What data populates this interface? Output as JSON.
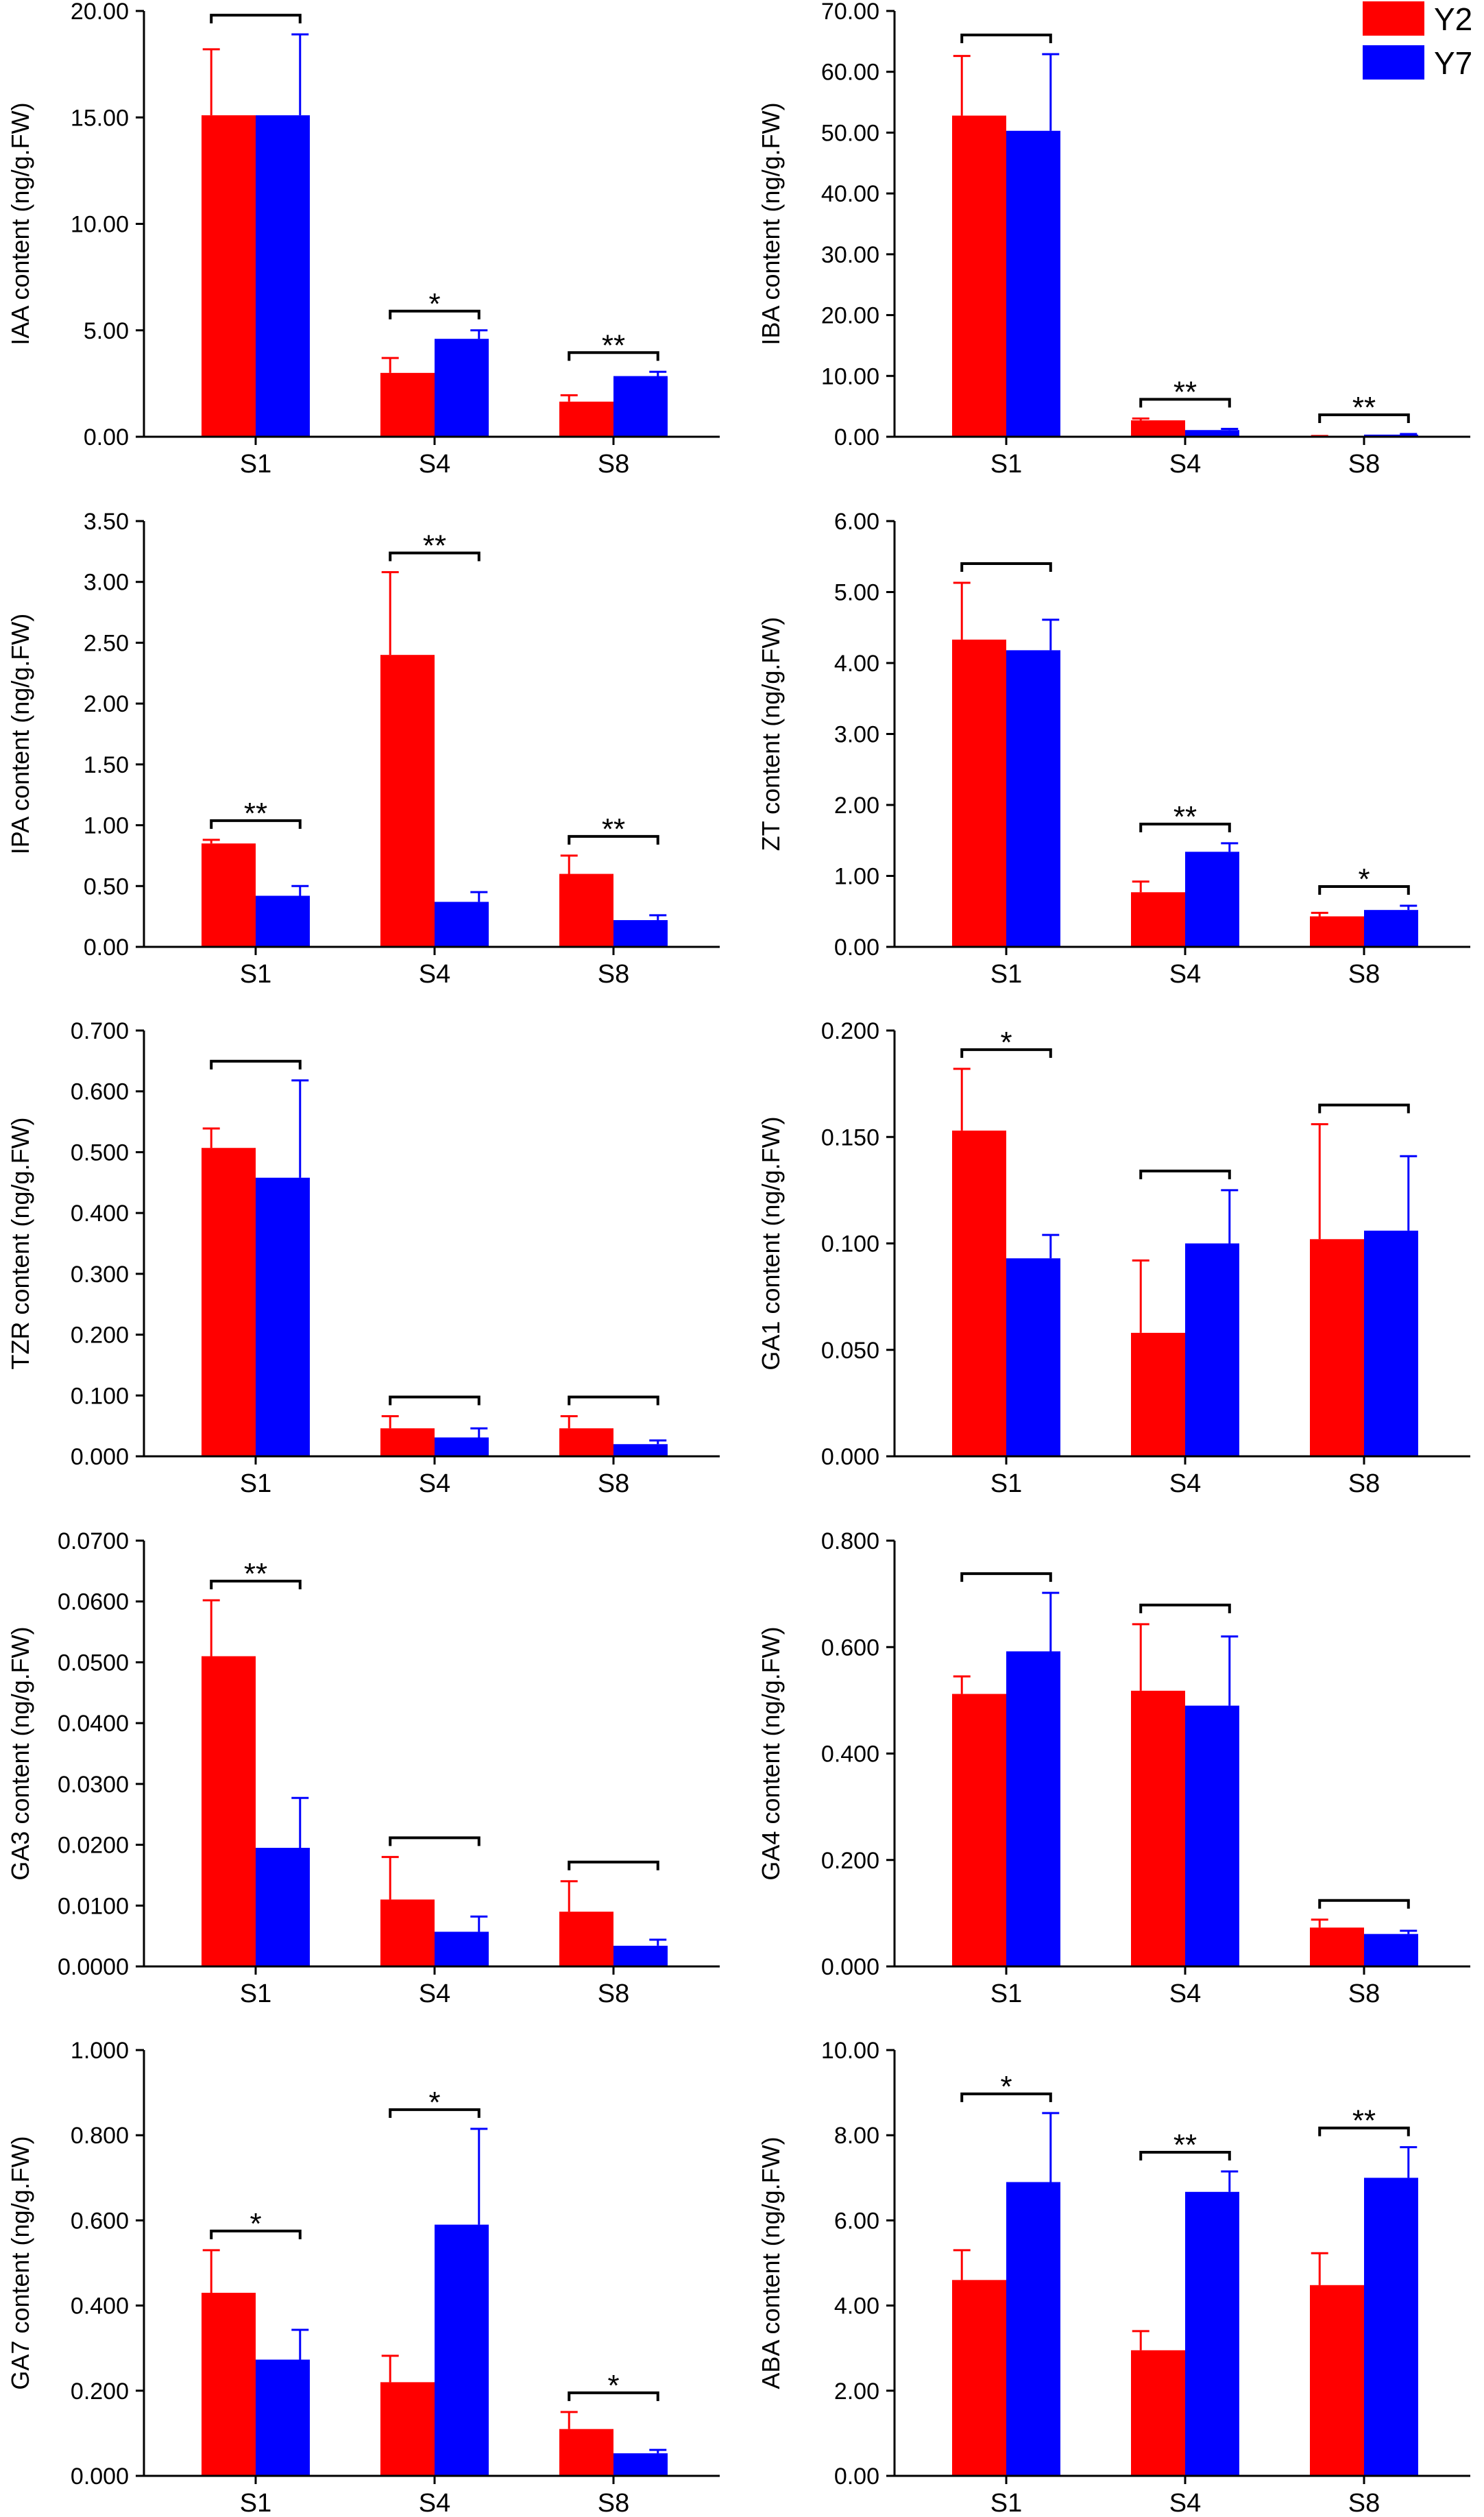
{
  "colors": {
    "Y2": "#ff0000",
    "Y7": "#0000ff"
  },
  "legend": [
    {
      "name": "Y2",
      "color": "#ff0000"
    },
    {
      "name": "Y7",
      "color": "#0000ff"
    }
  ],
  "chart_data": [
    {
      "type": "bar",
      "ylabel": "IAA content (ng/g.FW)",
      "categories": [
        "S1",
        "S4",
        "S8"
      ],
      "ylim": [
        0,
        20
      ],
      "yticks": [
        "0.00",
        "5.00",
        "10.00",
        "15.00",
        "20.00"
      ],
      "series": [
        {
          "name": "Y2",
          "values": [
            15.1,
            3.0,
            1.65
          ],
          "errors": [
            3.1,
            0.7,
            0.3
          ]
        },
        {
          "name": "Y7",
          "values": [
            15.1,
            4.6,
            2.85
          ],
          "errors": [
            3.8,
            0.4,
            0.2
          ]
        }
      ],
      "significance": [
        "",
        "*",
        "**"
      ]
    },
    {
      "type": "bar",
      "ylabel": "IBA content (ng/g.FW)",
      "categories": [
        "S1",
        "S4",
        "S8"
      ],
      "ylim": [
        0,
        70
      ],
      "yticks": [
        "0.00",
        "10.00",
        "20.00",
        "30.00",
        "40.00",
        "50.00",
        "60.00",
        "70.00"
      ],
      "series": [
        {
          "name": "Y2",
          "values": [
            52.8,
            2.7,
            0.08
          ],
          "errors": [
            9.8,
            0.3,
            0.05
          ]
        },
        {
          "name": "Y7",
          "values": [
            50.3,
            1.1,
            0.35
          ],
          "errors": [
            12.6,
            0.2,
            0.1
          ]
        }
      ],
      "significance": [
        "",
        "**",
        "**"
      ]
    },
    {
      "type": "bar",
      "ylabel": "IPA content (ng/g.FW)",
      "categories": [
        "S1",
        "S4",
        "S8"
      ],
      "ylim": [
        0,
        3.5
      ],
      "yticks": [
        "0.00",
        "0.50",
        "1.00",
        "1.50",
        "2.00",
        "2.50",
        "3.00",
        "3.50"
      ],
      "series": [
        {
          "name": "Y2",
          "values": [
            0.85,
            2.4,
            0.6
          ],
          "errors": [
            0.03,
            0.68,
            0.15
          ]
        },
        {
          "name": "Y7",
          "values": [
            0.42,
            0.37,
            0.22
          ],
          "errors": [
            0.08,
            0.08,
            0.04
          ]
        }
      ],
      "significance": [
        "**",
        "**",
        "**"
      ]
    },
    {
      "type": "bar",
      "ylabel": "ZT content (ng/g.FW)",
      "categories": [
        "S1",
        "S4",
        "S8"
      ],
      "ylim": [
        0,
        6
      ],
      "yticks": [
        "0.00",
        "1.00",
        "2.00",
        "3.00",
        "4.00",
        "5.00",
        "6.00"
      ],
      "series": [
        {
          "name": "Y2",
          "values": [
            4.33,
            0.77,
            0.43
          ],
          "errors": [
            0.8,
            0.15,
            0.05
          ]
        },
        {
          "name": "Y7",
          "values": [
            4.18,
            1.34,
            0.52
          ],
          "errors": [
            0.43,
            0.12,
            0.06
          ]
        }
      ],
      "significance": [
        "",
        "**",
        "*"
      ]
    },
    {
      "type": "bar",
      "ylabel": "TZR content (ng/g.FW)",
      "categories": [
        "S1",
        "S4",
        "S8"
      ],
      "ylim": [
        0,
        0.7
      ],
      "yticks": [
        "0.000",
        "0.100",
        "0.200",
        "0.300",
        "0.400",
        "0.500",
        "0.600",
        "0.700"
      ],
      "series": [
        {
          "name": "Y2",
          "values": [
            0.507,
            0.046,
            0.046
          ],
          "errors": [
            0.032,
            0.02,
            0.02
          ]
        },
        {
          "name": "Y7",
          "values": [
            0.458,
            0.031,
            0.02
          ],
          "errors": [
            0.16,
            0.015,
            0.006
          ]
        }
      ],
      "significance": [
        "",
        "",
        ""
      ]
    },
    {
      "type": "bar",
      "ylabel": "GA1 content (ng/g.FW)",
      "categories": [
        "S1",
        "S4",
        "S8"
      ],
      "ylim": [
        0,
        0.2
      ],
      "yticks": [
        "0.000",
        "0.050",
        "0.100",
        "0.150",
        "0.200"
      ],
      "series": [
        {
          "name": "Y2",
          "values": [
            0.153,
            0.058,
            0.102
          ],
          "errors": [
            0.029,
            0.034,
            0.054
          ]
        },
        {
          "name": "Y7",
          "values": [
            0.093,
            0.1,
            0.106
          ],
          "errors": [
            0.011,
            0.025,
            0.035
          ]
        }
      ],
      "significance": [
        "*",
        "",
        ""
      ]
    },
    {
      "type": "bar",
      "ylabel": "GA3 content (ng/g.FW)",
      "categories": [
        "S1",
        "S4",
        "S8"
      ],
      "ylim": [
        0,
        0.07
      ],
      "yticks": [
        "0.0000",
        "0.0100",
        "0.0200",
        "0.0300",
        "0.0400",
        "0.0500",
        "0.0600",
        "0.0700"
      ],
      "series": [
        {
          "name": "Y2",
          "values": [
            0.051,
            0.011,
            0.009
          ],
          "errors": [
            0.0092,
            0.007,
            0.005
          ]
        },
        {
          "name": "Y7",
          "values": [
            0.0195,
            0.0057,
            0.0034
          ],
          "errors": [
            0.0082,
            0.0025,
            0.001
          ]
        }
      ],
      "significance": [
        "**",
        "",
        ""
      ]
    },
    {
      "type": "bar",
      "ylabel": "GA4 content (ng/g.FW)",
      "categories": [
        "S1",
        "S4",
        "S8"
      ],
      "ylim": [
        0,
        0.8
      ],
      "yticks": [
        "0.000",
        "0.200",
        "0.400",
        "0.600",
        "0.800"
      ],
      "series": [
        {
          "name": "Y2",
          "values": [
            0.512,
            0.518,
            0.073
          ],
          "errors": [
            0.033,
            0.125,
            0.015
          ]
        },
        {
          "name": "Y7",
          "values": [
            0.592,
            0.49,
            0.061
          ],
          "errors": [
            0.11,
            0.13,
            0.006
          ]
        }
      ],
      "significance": [
        "",
        "",
        ""
      ]
    },
    {
      "type": "bar",
      "ylabel": "GA7 content (ng/g.FW)",
      "categories": [
        "S1",
        "S4",
        "S8"
      ],
      "ylim": [
        0,
        1.0
      ],
      "yticks": [
        "0.000",
        "0.200",
        "0.400",
        "0.600",
        "0.800",
        "1.000"
      ],
      "series": [
        {
          "name": "Y2",
          "values": [
            0.43,
            0.22,
            0.11
          ],
          "errors": [
            0.1,
            0.062,
            0.04
          ]
        },
        {
          "name": "Y7",
          "values": [
            0.273,
            0.59,
            0.053
          ],
          "errors": [
            0.07,
            0.225,
            0.008
          ]
        }
      ],
      "significance": [
        "*",
        "*",
        "*"
      ]
    },
    {
      "type": "bar",
      "ylabel": "ABA content (ng/g.FW)",
      "categories": [
        "S1",
        "S4",
        "S8"
      ],
      "ylim": [
        0,
        10
      ],
      "yticks": [
        "0.00",
        "2.00",
        "4.00",
        "6.00",
        "8.00",
        "10.00"
      ],
      "series": [
        {
          "name": "Y2",
          "values": [
            4.6,
            2.95,
            4.48
          ],
          "errors": [
            0.7,
            0.45,
            0.75
          ]
        },
        {
          "name": "Y7",
          "values": [
            6.9,
            6.67,
            7.0
          ],
          "errors": [
            1.62,
            0.48,
            0.72
          ]
        }
      ],
      "significance": [
        "*",
        "**",
        "**"
      ]
    }
  ]
}
